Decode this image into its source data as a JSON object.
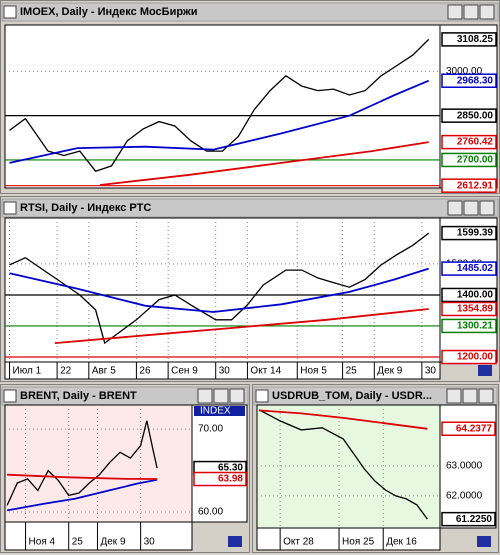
{
  "chart_data": [
    {
      "type": "line",
      "title": "IMOEX, Daily - Индекс МосБиржи",
      "background": "#ffffff",
      "grid": true,
      "xlim": [
        -2,
        190
      ],
      "ylim": [
        2605,
        3157
      ],
      "yticks": [
        {
          "value": 3000,
          "label": "3000.00"
        }
      ],
      "xticks": [],
      "series": [
        {
          "color": "#000000",
          "x": [
            0,
            7,
            17,
            24,
            31,
            38,
            45,
            52,
            59,
            66,
            73,
            80,
            87,
            94,
            101,
            108,
            115,
            122,
            129,
            136,
            143,
            150,
            157,
            164,
            171,
            178,
            185
          ],
          "values": [
            2800,
            2840,
            2730,
            2715,
            2730,
            2662,
            2680,
            2765,
            2805,
            2830,
            2815,
            2765,
            2730,
            2730,
            2780,
            2870,
            2935,
            2985,
            2950,
            2935,
            2940,
            2920,
            2935,
            2985,
            3020,
            3055,
            3108.25
          ]
        },
        {
          "color": "#0000cc",
          "x": [
            0,
            30,
            60,
            90,
            120,
            150,
            170,
            185
          ],
          "values": [
            2690,
            2740,
            2745,
            2735,
            2790,
            2850,
            2920,
            2968.3
          ]
        },
        {
          "color": "#dd0000",
          "x": [
            40,
            80,
            120,
            160,
            185
          ],
          "values": [
            2615,
            2650,
            2690,
            2730,
            2760.42
          ]
        }
      ],
      "hlines": [
        {
          "value": 2850,
          "color": "#000000"
        },
        {
          "value": 2700,
          "color": "#008000"
        },
        {
          "value": 2612.91,
          "color": "#dd0000"
        }
      ],
      "markers": [
        {
          "value": 3108.25,
          "label": "3108.25",
          "color": "#000000"
        },
        {
          "value": 2968.3,
          "label": "2968.30",
          "color": "#0000cc"
        },
        {
          "value": 2850,
          "label": "2850.00",
          "color": "#000000"
        },
        {
          "value": 2760.42,
          "label": "2760.42",
          "color": "#dd0000"
        },
        {
          "value": 2700,
          "label": "2700.00",
          "color": "#008000"
        },
        {
          "value": 2612.91,
          "label": "2612.91",
          "color": "#dd0000"
        }
      ]
    },
    {
      "type": "line",
      "title": "RTSI, Daily - Индекс РТС",
      "background": "#ffffff",
      "grid": true,
      "xlim": [
        -2,
        190
      ],
      "ylim": [
        1184,
        1648
      ],
      "yticks": [
        {
          "value": 1500,
          "label": "1500.00"
        }
      ],
      "xticks": [
        {
          "value": 0,
          "label": "Июл 1"
        },
        {
          "value": 21,
          "label": "22"
        },
        {
          "value": 35,
          "label": "Авг 5"
        },
        {
          "value": 56,
          "label": "26"
        },
        {
          "value": 70,
          "label": "Сен 9"
        },
        {
          "value": 91,
          "label": "30"
        },
        {
          "value": 105,
          "label": "Окт 14"
        },
        {
          "value": 127,
          "label": "Ноя 5"
        },
        {
          "value": 147,
          "label": "25"
        },
        {
          "value": 161,
          "label": "Дек 9"
        },
        {
          "value": 182,
          "label": "30"
        }
      ],
      "series": [
        {
          "color": "#000000",
          "x": [
            0,
            7,
            21,
            31,
            38,
            42,
            56,
            66,
            73,
            80,
            91,
            98,
            105,
            112,
            122,
            129,
            136,
            143,
            150,
            157,
            164,
            171,
            178,
            185
          ],
          "values": [
            1497,
            1520,
            1450,
            1400,
            1352,
            1245,
            1320,
            1385,
            1400,
            1368,
            1320,
            1320,
            1368,
            1432,
            1480,
            1480,
            1455,
            1440,
            1425,
            1450,
            1497,
            1530,
            1560,
            1599.39
          ]
        },
        {
          "color": "#0000cc",
          "x": [
            0,
            30,
            60,
            90,
            120,
            150,
            170,
            185
          ],
          "values": [
            1470,
            1420,
            1365,
            1345,
            1370,
            1410,
            1450,
            1485.02
          ]
        },
        {
          "color": "#dd0000",
          "x": [
            20,
            60,
            100,
            140,
            185
          ],
          "values": [
            1245,
            1270,
            1295,
            1320,
            1354.89
          ]
        }
      ],
      "hlines": [
        {
          "value": 1400,
          "color": "#000000"
        },
        {
          "value": 1300.21,
          "color": "#008000"
        },
        {
          "value": 1200,
          "color": "#dd0000"
        }
      ],
      "markers": [
        {
          "value": 1599.39,
          "label": "1599.39",
          "color": "#000000"
        },
        {
          "value": 1485.02,
          "label": "1485.02",
          "color": "#0000cc"
        },
        {
          "value": 1400,
          "label": "1400.00",
          "color": "#000000"
        },
        {
          "value": 1354.89,
          "label": "1354.89",
          "color": "#dd0000"
        },
        {
          "value": 1300.21,
          "label": "1300.21",
          "color": "#008000"
        },
        {
          "value": 1200,
          "label": "1200.00",
          "color": "#dd0000"
        }
      ]
    },
    {
      "type": "line",
      "title": "BRENT, Daily - BRENT",
      "tag": "INDEX",
      "background": "#fde9e9",
      "grid": true,
      "xlim": [
        1,
        92
      ],
      "ylim": [
        58.8,
        72.9
      ],
      "yticks": [
        {
          "value": 70,
          "label": "70.00"
        },
        {
          "value": 60,
          "label": "60.00"
        }
      ],
      "xticks": [
        {
          "value": 11,
          "label": "Ноя 4"
        },
        {
          "value": 32,
          "label": "25"
        },
        {
          "value": 46,
          "label": "Дек 9"
        },
        {
          "value": 67,
          "label": "30"
        }
      ],
      "series": [
        {
          "color": "#000000",
          "x": [
            2,
            7,
            12,
            17,
            22,
            27,
            32,
            37,
            42,
            47,
            52,
            57,
            62,
            67,
            70,
            73,
            75
          ],
          "values": [
            60.8,
            63.5,
            64,
            62.6,
            65,
            63.8,
            62,
            62.3,
            63.5,
            64.5,
            66,
            67.2,
            66.5,
            68,
            71,
            67.5,
            65.3
          ]
        },
        {
          "color": "#0000cc",
          "x": [
            2,
            20,
            35,
            50,
            65,
            75
          ],
          "values": [
            60.2,
            61,
            61.6,
            62.5,
            63.4,
            63.9
          ]
        },
        {
          "color": "#dd0000",
          "x": [
            2,
            30,
            60,
            75
          ],
          "values": [
            64.5,
            64.2,
            64,
            63.98
          ]
        }
      ],
      "hlines": [],
      "markers": [
        {
          "value": 65.3,
          "label": "65.30",
          "color": "#000000"
        },
        {
          "value": 63.98,
          "label": "63.98",
          "color": "#dd0000"
        }
      ]
    },
    {
      "type": "line",
      "title": "USDRUB_TOM, Daily - USDR...",
      "background": "#e6f9e0",
      "grid": true,
      "xlim": [
        -11,
        76
      ],
      "ylim": [
        60.93,
        65.03
      ],
      "yticks": [
        {
          "value": 63,
          "label": "63.0000"
        },
        {
          "value": 62,
          "label": "62.0000"
        }
      ],
      "xticks": [
        {
          "value": 0,
          "label": "Окт 28"
        },
        {
          "value": 28,
          "label": "Ноя 25"
        },
        {
          "value": 49,
          "label": "Дек 16"
        }
      ],
      "series": [
        {
          "color": "#000000",
          "x": [
            -10,
            0,
            10,
            20,
            30,
            35,
            40,
            45,
            50,
            55,
            60,
            65,
            70
          ],
          "values": [
            64.87,
            64.5,
            64.2,
            64.27,
            63.9,
            63.4,
            62.9,
            62.5,
            62.2,
            62,
            61.9,
            61.7,
            61.225
          ]
        },
        {
          "color": "#dd0000",
          "x": [
            -10,
            10,
            30,
            50,
            70
          ],
          "values": [
            64.85,
            64.75,
            64.6,
            64.42,
            64.2377
          ]
        }
      ],
      "hlines": [],
      "markers": [
        {
          "value": 64.2377,
          "label": "64.2377",
          "color": "#dd0000"
        },
        {
          "value": 61.225,
          "label": "61.2250",
          "color": "#000000"
        }
      ]
    }
  ]
}
